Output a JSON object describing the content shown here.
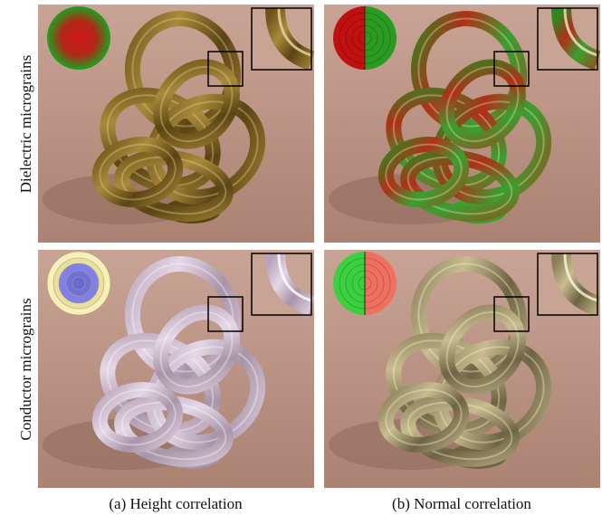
{
  "rows": [
    {
      "label": "Dielectric micrograins"
    },
    {
      "label": "Conductor micrograins"
    }
  ],
  "columns": [
    {
      "caption": "(a) Height correlation"
    },
    {
      "caption": "(b) Normal correlation"
    }
  ]
}
